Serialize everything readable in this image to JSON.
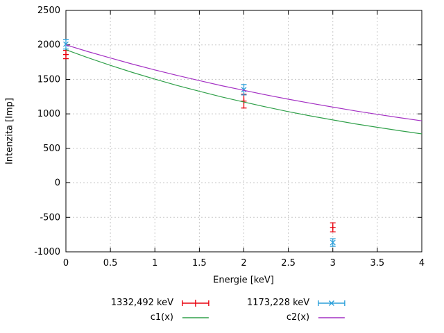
{
  "chart_data": {
    "type": "line",
    "title": "",
    "xlabel": "Energie [keV]",
    "ylabel": "Intenzita [Imp]",
    "xlim": [
      0,
      4
    ],
    "ylim": [
      -1000,
      2500
    ],
    "xticks": [
      0,
      0.5,
      1,
      1.5,
      2,
      2.5,
      3,
      3.5,
      4
    ],
    "yticks": [
      -1000,
      -500,
      0,
      500,
      1000,
      1500,
      2000,
      2500
    ],
    "grid": true,
    "legend_position": "below-center",
    "series": [
      {
        "name": "1332,492 keV",
        "kind": "points-errorbars",
        "marker": "plus",
        "color": "#e8000d",
        "points": [
          {
            "x": 0,
            "y": 1860,
            "err": 60
          },
          {
            "x": 2,
            "y": 1185,
            "err": 100
          },
          {
            "x": 3,
            "y": -645,
            "err": 65
          }
        ]
      },
      {
        "name": "1173,228 keV",
        "kind": "points-errorbars",
        "marker": "cross",
        "color": "#2b9fd9",
        "points": [
          {
            "x": 0,
            "y": 2010,
            "err": 70
          },
          {
            "x": 2,
            "y": 1350,
            "err": 75
          },
          {
            "x": 3,
            "y": -865,
            "err": 55
          }
        ]
      },
      {
        "name": "c1(x)",
        "kind": "line",
        "color": "#30a04a",
        "x": [
          0,
          0.25,
          0.5,
          0.75,
          1,
          1.25,
          1.5,
          1.75,
          2,
          2.25,
          2.5,
          2.75,
          3,
          3.25,
          3.5,
          3.75,
          4
        ],
        "y": [
          1930,
          1813,
          1703,
          1600,
          1503,
          1412,
          1327,
          1246,
          1171,
          1100,
          1033,
          970,
          912,
          856,
          805,
          756,
          710
        ]
      },
      {
        "name": "c2(x)",
        "kind": "line",
        "color": "#a431c4",
        "x": [
          0,
          0.25,
          0.5,
          0.75,
          1,
          1.25,
          1.5,
          1.75,
          2,
          2.25,
          2.5,
          2.75,
          3,
          3.25,
          3.5,
          3.75,
          4
        ],
        "y": [
          2000,
          1902,
          1810,
          1721,
          1637,
          1558,
          1482,
          1409,
          1341,
          1275,
          1213,
          1154,
          1098,
          1044,
          993,
          945,
          899
        ]
      }
    ]
  }
}
